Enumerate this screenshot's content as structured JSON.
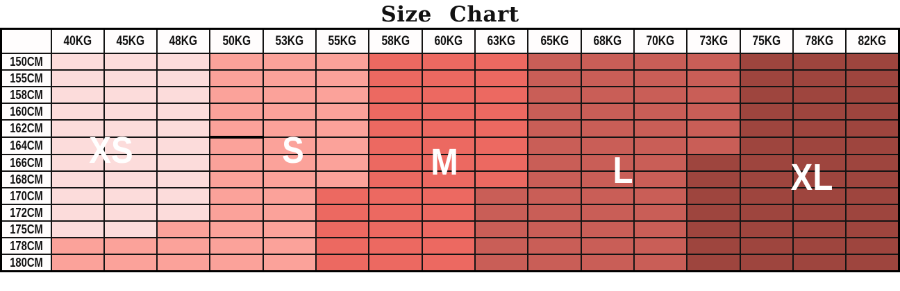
{
  "title": "Size Chart",
  "chart_data": {
    "type": "heatmap",
    "title": "Size Chart",
    "x_categories": [
      "40KG",
      "45KG",
      "48KG",
      "50KG",
      "53KG",
      "55KG",
      "58KG",
      "60KG",
      "63KG",
      "65KG",
      "68KG",
      "70KG",
      "73KG",
      "75KG",
      "78KG",
      "82KG"
    ],
    "y_categories": [
      "150CM",
      "155CM",
      "158CM",
      "160CM",
      "162CM",
      "164CM",
      "166CM",
      "168CM",
      "170CM",
      "172CM",
      "175CM",
      "178CM",
      "180CM"
    ],
    "sizes": [
      "XS",
      "S",
      "M",
      "L",
      "XL"
    ],
    "size_colors": {
      "XS": "#fcdcdb",
      "S": "#fba29a",
      "M": "#ec6961",
      "L": "#c95e57",
      "XL": "#9e453e"
    },
    "cell_values": [
      [
        "XS",
        "XS",
        "XS",
        "S",
        "S",
        "S",
        "M",
        "M",
        "M",
        "L",
        "L",
        "L",
        "L",
        "XL",
        "XL",
        "XL"
      ],
      [
        "XS",
        "XS",
        "XS",
        "S",
        "S",
        "S",
        "M",
        "M",
        "M",
        "L",
        "L",
        "L",
        "L",
        "XL",
        "XL",
        "XL"
      ],
      [
        "XS",
        "XS",
        "XS",
        "S",
        "S",
        "S",
        "M",
        "M",
        "M",
        "L",
        "L",
        "L",
        "L",
        "XL",
        "XL",
        "XL"
      ],
      [
        "XS",
        "XS",
        "XS",
        "S",
        "S",
        "S",
        "M",
        "M",
        "M",
        "L",
        "L",
        "L",
        "L",
        "XL",
        "XL",
        "XL"
      ],
      [
        "XS",
        "XS",
        "XS",
        "S",
        "S",
        "S",
        "M",
        "M",
        "M",
        "L",
        "L",
        "L",
        "L",
        "XL",
        "XL",
        "XL"
      ],
      [
        "XS",
        "XS",
        "XS",
        "S",
        "S",
        "S",
        "M",
        "M",
        "M",
        "L",
        "L",
        "L",
        "L",
        "XL",
        "XL",
        "XL"
      ],
      [
        "XS",
        "XS",
        "XS",
        "S",
        "S",
        "S",
        "M",
        "M",
        "M",
        "L",
        "L",
        "L",
        "XL",
        "XL",
        "XL",
        "XL"
      ],
      [
        "XS",
        "XS",
        "XS",
        "S",
        "S",
        "S",
        "M",
        "M",
        "M",
        "L",
        "L",
        "L",
        "XL",
        "XL",
        "XL",
        "XL"
      ],
      [
        "XS",
        "XS",
        "XS",
        "S",
        "S",
        "M",
        "M",
        "M",
        "L",
        "L",
        "L",
        "L",
        "XL",
        "XL",
        "XL",
        "XL"
      ],
      [
        "XS",
        "XS",
        "XS",
        "S",
        "S",
        "M",
        "M",
        "M",
        "L",
        "L",
        "L",
        "L",
        "XL",
        "XL",
        "XL",
        "XL"
      ],
      [
        "XS",
        "XS",
        "S",
        "S",
        "S",
        "M",
        "M",
        "M",
        "L",
        "L",
        "L",
        "L",
        "XL",
        "XL",
        "XL",
        "XL"
      ],
      [
        "S",
        "S",
        "S",
        "S",
        "S",
        "M",
        "M",
        "M",
        "L",
        "L",
        "L",
        "L",
        "XL",
        "XL",
        "XL",
        "XL"
      ],
      [
        "S",
        "S",
        "S",
        "S",
        "S",
        "M",
        "M",
        "M",
        "L",
        "L",
        "L",
        "L",
        "XL",
        "XL",
        "XL",
        "XL"
      ]
    ],
    "size_labels": [
      {
        "text": "XS",
        "left_pct": 12.35,
        "top_pct": 47.1
      },
      {
        "text": "S",
        "left_pct": 32.6,
        "top_pct": 47.1
      },
      {
        "text": "M",
        "left_pct": 49.4,
        "top_pct": 51.6
      },
      {
        "text": "L",
        "left_pct": 69.2,
        "top_pct": 54.7
      },
      {
        "text": "XL",
        "left_pct": 90.2,
        "top_pct": 57.4
      }
    ],
    "accent_cell": {
      "row": "162CM",
      "col": "50KG"
    },
    "grid_color": "#141414",
    "text_color": "#111111",
    "legend": "none",
    "axes": "labels embedded in first row and first column"
  }
}
